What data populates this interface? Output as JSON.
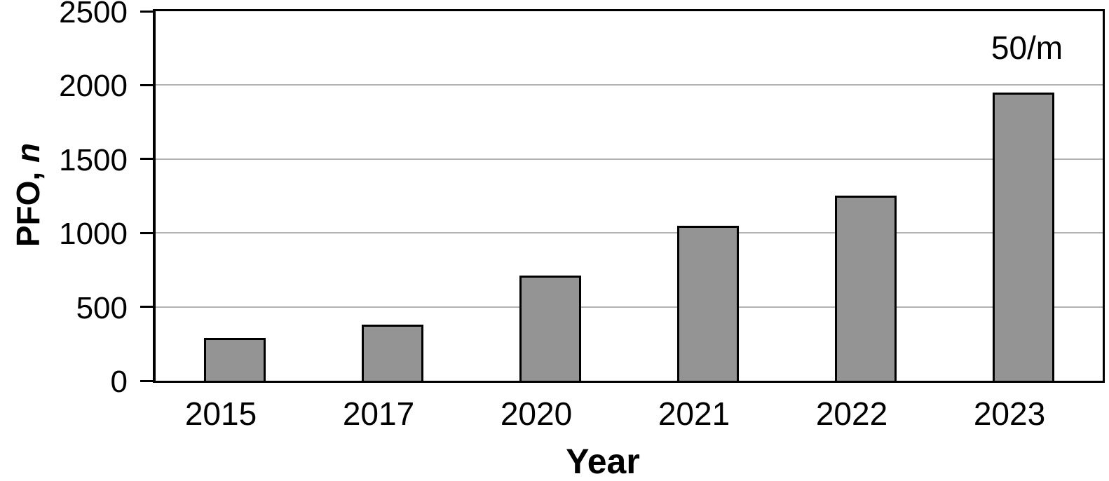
{
  "chart_data": {
    "type": "bar",
    "title": "",
    "categories": [
      "2015",
      "2017",
      "2020",
      "2021",
      "2022",
      "2023"
    ],
    "values": [
      290,
      380,
      710,
      1050,
      1250,
      1950
    ],
    "xlabel": "Year",
    "ylabel": "PFO, n",
    "ylabel_prefix": "PFO, ",
    "ylabel_italic": "n",
    "ylim": [
      0,
      2500
    ],
    "yticks": [
      0,
      500,
      1000,
      1500,
      2000,
      2500
    ],
    "grid": true,
    "legend_position": "none",
    "annotation": {
      "text": "50/m",
      "category_index": 5
    },
    "colors": {
      "bar_fill": "#949494",
      "bar_border": "#000000",
      "gridline": "#b3b3b3",
      "axis": "#000000",
      "text": "#000000"
    }
  }
}
